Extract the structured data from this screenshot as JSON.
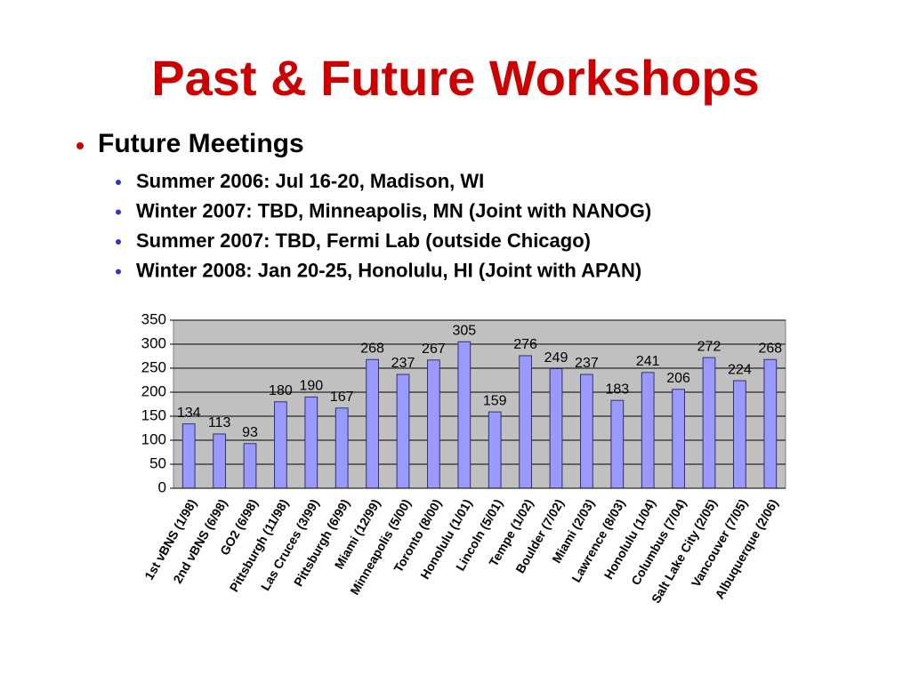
{
  "header": {
    "title": "Past & Future Workshops"
  },
  "bullets": {
    "heading": "Future Meetings",
    "items": [
      "Summer 2006: Jul 16-20, Madison, WI",
      "Winter 2007: TBD, Minneapolis, MN (Joint with NANOG)",
      "Summer 2007: TBD, Fermi Lab (outside Chicago)",
      "Winter 2008: Jan 20-25, Honolulu, HI (Joint with APAN)"
    ]
  },
  "chart_data": {
    "type": "bar",
    "categories": [
      "1st vBNS (1/98)",
      "2nd vBNS (6/98)",
      "GO2 (6/98)",
      "Pittsburgh (11/98)",
      "Las Cruces (3/99)",
      "Pittsburgh (6/99)",
      "Miami (12/99)",
      "Minneapolis (5/00)",
      "Toronto (8/00)",
      "Honolulu (1/01)",
      "Lincoln (5/01)",
      "Tempe (1/02)",
      "Boulder (7/02)",
      "Miami (2/03)",
      "Lawrence (8/03)",
      "Honolulu (1/04)",
      "Columbus (7/04)",
      "Salt Lake City (2/05)",
      "Vancouver (7/05)",
      "Albuquerque (2/06)"
    ],
    "values": [
      134,
      113,
      93,
      180,
      190,
      167,
      268,
      237,
      267,
      305,
      159,
      276,
      249,
      237,
      183,
      241,
      206,
      272,
      224,
      268
    ],
    "color": "#9999ff",
    "ylim": [
      0,
      350
    ],
    "yticks": [
      0,
      50,
      100,
      150,
      200,
      250,
      300,
      350
    ],
    "grid": true
  }
}
